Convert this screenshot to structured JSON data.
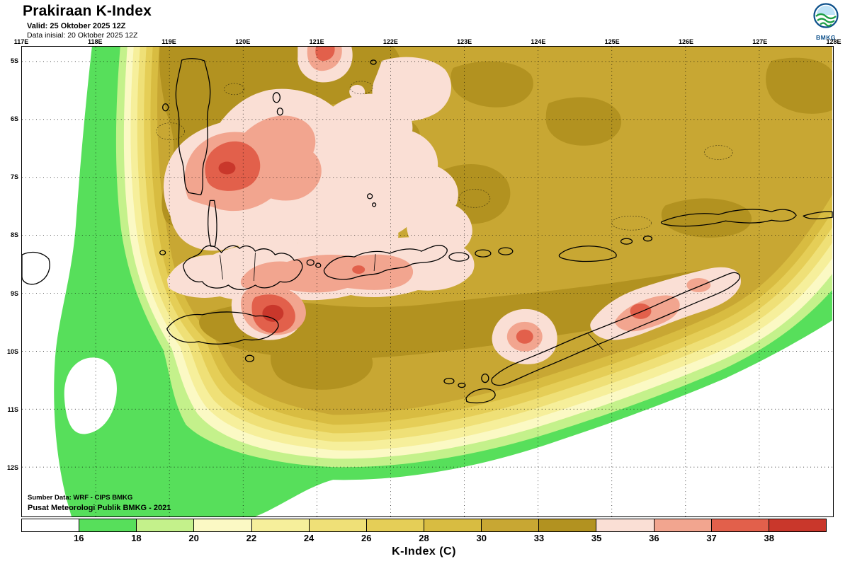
{
  "header": {
    "title": "Prakiraan K-Index",
    "valid_line": "Valid: 25 Oktober 2025 12Z",
    "init_line": "Data inisial: 20 Oktober 2025 12Z",
    "logo_text": "BMKG"
  },
  "map": {
    "lon_labels": [
      "117E",
      "118E",
      "119E",
      "120E",
      "121E",
      "122E",
      "123E",
      "124E",
      "125E",
      "126E",
      "127E",
      "128E"
    ],
    "lat_labels": [
      "5S",
      "6S",
      "7S",
      "8S",
      "9S",
      "10S",
      "11S",
      "12S"
    ],
    "credit_line1": "Sumber Data: WRF - CIPS BMKG",
    "credit_line2": "Pusat Meteorologi Publik BMKG - 2021"
  },
  "legend": {
    "title": "K-Index (C)",
    "tick_labels": [
      "16",
      "18",
      "20",
      "22",
      "24",
      "26",
      "28",
      "30",
      "33",
      "35",
      "36",
      "37",
      "38"
    ],
    "segment_colors": [
      "#FFFFFF",
      "#57DF5B",
      "#C4F18B",
      "#FBF9C4",
      "#F6EF9B",
      "#EFE077",
      "#E5CE57",
      "#D8BC41",
      "#C8A733",
      "#B29220",
      "#FADFD5",
      "#F2A58F",
      "#E2604B",
      "#C9372B"
    ]
  },
  "chart_data": {
    "type": "filled-contour-map",
    "title": "Prakiraan K-Index",
    "variable": "K-Index (C)",
    "valid_time": "25 Oktober 2025 12Z",
    "initial_time": "20 Oktober 2025 12Z",
    "source": "WRF - CIPS BMKG",
    "lon_range": [
      "117E",
      "128E"
    ],
    "lat_range": [
      "5S",
      "12S"
    ],
    "contour_levels": [
      16,
      18,
      20,
      22,
      24,
      26,
      28,
      30,
      33,
      35,
      36,
      37,
      38
    ],
    "level_colors": [
      "#FFFFFF",
      "#57DF5B",
      "#C4F18B",
      "#FBF9C4",
      "#F6EF9B",
      "#EFE077",
      "#E5CE57",
      "#D8BC41",
      "#C8A733",
      "#B29220",
      "#FADFD5",
      "#F2A58F",
      "#E2604B",
      "#C9372B"
    ],
    "background_range": "28-35 over most of the domain, decreasing to below 16 at the southwest and southeast edges",
    "notable_maxima": [
      {
        "area": "Sumbawa (117E-119E, 8S-9S)",
        "k_index": "above 38"
      },
      {
        "area": "South Sulawesi waters (119E-121E, 6S-8S)",
        "k_index": "37-38"
      },
      {
        "area": "Flores (121E-122E, 8.5S)",
        "k_index": "37-38"
      },
      {
        "area": "West Timor inland (123.5E, 9.8S)",
        "k_index": "37-38"
      },
      {
        "area": "Central Timor (124.5E-125.5E, 9S-9.5S)",
        "k_index": "37-38"
      },
      {
        "area": "North edge near 121E, 5S",
        "k_index": "37-38"
      }
    ]
  }
}
